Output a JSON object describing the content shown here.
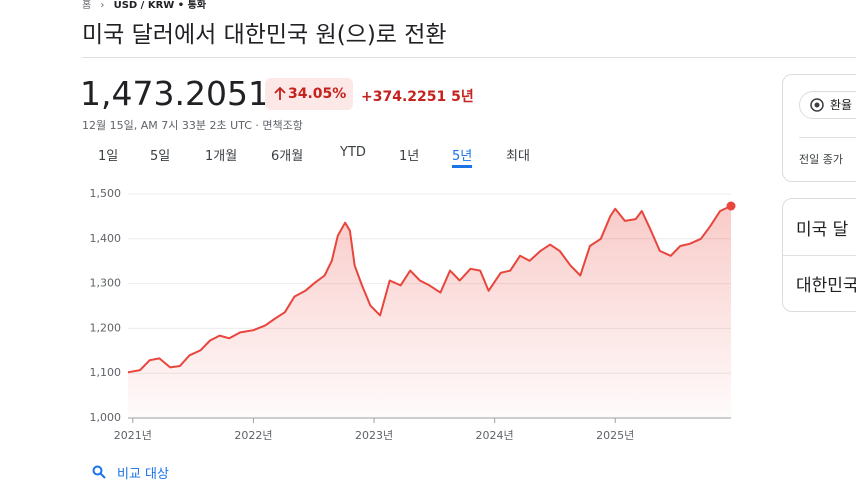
{
  "breadcrumb": {
    "home": "홈",
    "pair": "USD / KRW • 통화"
  },
  "title": "미국 달러에서 대한민국 원(으)로 전환",
  "price": "1,473.2051",
  "change_percent": "34.05%",
  "change": "+374.2251",
  "period": "5년",
  "timestamp": "12월 15일, AM 7시 33분 2초 UTC",
  "disclaimer": "면책조항",
  "tabs": [
    "1일",
    "5일",
    "1개월",
    "6개월",
    "YTD",
    "1년",
    "5년",
    "최대"
  ],
  "active_tab": 6,
  "chart_data": {
    "type": "area",
    "x": [
      2020.96,
      2021.06,
      2021.14,
      2021.22,
      2021.31,
      2021.39,
      2021.47,
      2021.56,
      2021.64,
      2021.72,
      2021.8,
      2021.89,
      2022.0,
      2022.1,
      2022.18,
      2022.26,
      2022.34,
      2022.43,
      2022.51,
      2022.59,
      2022.65,
      2022.7,
      2022.76,
      2022.8,
      2022.84,
      2022.9,
      2022.97,
      2023.05,
      2023.13,
      2023.22,
      2023.3,
      2023.38,
      2023.46,
      2023.55,
      2023.63,
      2023.71,
      2023.8,
      2023.88,
      2023.95,
      2024.05,
      2024.13,
      2024.21,
      2024.29,
      2024.38,
      2024.46,
      2024.54,
      2024.63,
      2024.71,
      2024.79,
      2024.88,
      2024.96,
      2025.0,
      2025.08,
      2025.17,
      2025.22,
      2025.29,
      2025.37,
      2025.46,
      2025.54,
      2025.62,
      2025.71,
      2025.79,
      2025.87,
      2025.96
    ],
    "series": [
      {
        "color": "#e8453c",
        "values": [
          1102,
          1107,
          1129,
          1133,
          1113,
          1116,
          1140,
          1151,
          1173,
          1184,
          1178,
          1191,
          1196,
          1207,
          1222,
          1236,
          1271,
          1284,
          1302,
          1318,
          1351,
          1407,
          1436,
          1418,
          1340,
          1296,
          1251,
          1229,
          1307,
          1296,
          1329,
          1307,
          1296,
          1280,
          1329,
          1307,
          1333,
          1329,
          1284,
          1324,
          1329,
          1362,
          1351,
          1373,
          1387,
          1373,
          1340,
          1318,
          1384,
          1400,
          1451,
          1467,
          1440,
          1444,
          1462,
          1422,
          1373,
          1362,
          1384,
          1389,
          1400,
          1429,
          1462,
          1473.2051
        ]
      }
    ],
    "xlim": [
      2020.96,
      2025.96
    ],
    "ylim": [
      1000,
      1500
    ],
    "xticks": [
      {
        "value": 2021,
        "label": "2021년"
      },
      {
        "value": 2022,
        "label": "2022년"
      },
      {
        "value": 2023,
        "label": "2023년"
      },
      {
        "value": 2024,
        "label": "2024년"
      },
      {
        "value": 2025,
        "label": "2025년"
      }
    ],
    "yticks": [
      {
        "value": 1000,
        "label": "1,000"
      },
      {
        "value": 1100,
        "label": "1,100"
      },
      {
        "value": 1200,
        "label": "1,200"
      },
      {
        "value": 1300,
        "label": "1,300"
      },
      {
        "value": 1400,
        "label": "1,400"
      },
      {
        "value": 1500,
        "label": "1,500"
      }
    ],
    "grid": true
  },
  "side_panel": {
    "button": "환율",
    "prev_close_label": "전일 종가",
    "from": "미국 달",
    "to": "대한민국"
  },
  "compare": "비교 대상"
}
